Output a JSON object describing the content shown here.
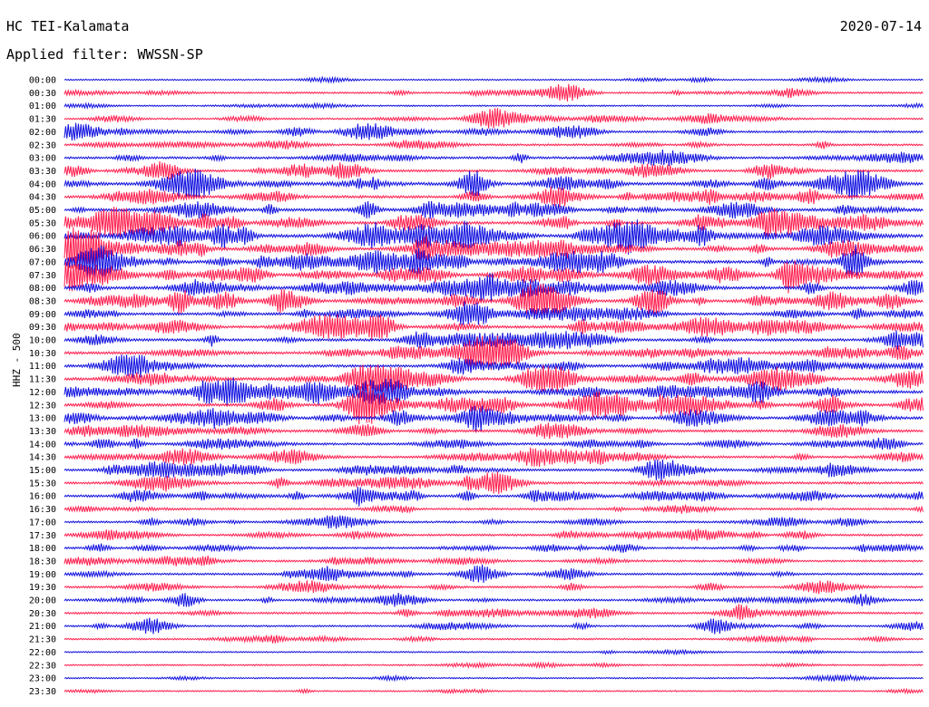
{
  "header": {
    "station": "HC TEI-Kalamata",
    "date": "2020-07-14",
    "filter": "Applied filter: WWSSN-SP"
  },
  "channel_label": "HHZ - 500",
  "colors": {
    "blue": "#1010e0",
    "red": "#ff1e4e"
  },
  "chart_data": {
    "type": "line",
    "title": "HC TEI-Kalamata",
    "subtitle": "Applied filter: WWSSN-SP",
    "ylabel": "HHZ - 500",
    "series_color_pattern": [
      "blue",
      "red"
    ],
    "y_tick_labels": [
      "00:00",
      "00:30",
      "01:00",
      "01:30",
      "02:00",
      "02:30",
      "03:00",
      "03:30",
      "04:00",
      "04:30",
      "05:00",
      "05:30",
      "06:00",
      "06:30",
      "07:00",
      "07:30",
      "08:00",
      "08:30",
      "09:00",
      "09:30",
      "10:00",
      "10:30",
      "11:00",
      "11:30",
      "12:00",
      "12:30",
      "13:00",
      "13:30",
      "14:00",
      "14:30",
      "15:00",
      "15:30",
      "16:00",
      "16:30",
      "17:00",
      "17:30",
      "18:00",
      "18:30",
      "19:00",
      "19:30",
      "20:00",
      "20:30",
      "21:00",
      "21:30",
      "22:00",
      "22:30",
      "23:00",
      "23:30"
    ],
    "activity_level": [
      1,
      2,
      1,
      2,
      3,
      3,
      4,
      4,
      6,
      5,
      6,
      6,
      7,
      6,
      6,
      6,
      6,
      6,
      5,
      5,
      5,
      5,
      5,
      6,
      6,
      6,
      5,
      5,
      4,
      4,
      4,
      4,
      4,
      3,
      3,
      3,
      3,
      3,
      3,
      3,
      3,
      3,
      2,
      2,
      1,
      1,
      1,
      1
    ],
    "events": [
      {
        "trace": "00:30",
        "minute": 17.5
      },
      {
        "trace": "01:30",
        "minute": 15.0
      },
      {
        "trace": "02:00",
        "minute": 0.5
      },
      {
        "trace": "02:00",
        "minute": 10.8
      },
      {
        "trace": "03:30",
        "minute": 9.8
      },
      {
        "trace": "04:00",
        "minute": 28.0
      },
      {
        "trace": "06:00",
        "minute": 3.9
      },
      {
        "trace": "09:30",
        "minute": 11.0
      },
      {
        "trace": "12:30",
        "minute": 11.0
      },
      {
        "trace": "13:00",
        "minute": 5.3
      },
      {
        "trace": "14:30",
        "minute": 16.3
      },
      {
        "trace": "19:00",
        "minute": 14.5
      },
      {
        "trace": "20:00",
        "minute": 4.2
      },
      {
        "trace": "21:00",
        "minute": 22.7
      },
      {
        "trace": "21:00",
        "minute": 3.0
      }
    ]
  }
}
